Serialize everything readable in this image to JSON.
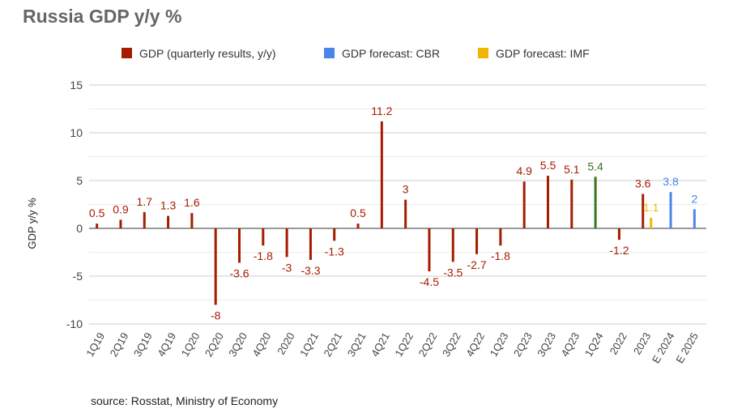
{
  "chart_data": {
    "type": "bar",
    "title": "Russia GDP y/y %",
    "y_label": "GDP y/y %",
    "source": "source: Rosstat, Ministry of Economy",
    "categories": [
      "1Q19",
      "2Q19",
      "3Q19",
      "4Q19",
      "1Q20",
      "2Q20",
      "3Q20",
      "4Q20",
      "2020",
      "1Q21",
      "2Q21",
      "3Q21",
      "4Q21",
      "1Q22",
      "2Q22",
      "3Q22",
      "4Q22",
      "1Q23",
      "2Q23",
      "3Q23",
      "4Q23",
      "1Q24",
      "2022",
      "2023",
      "E 2024",
      "E 2025"
    ],
    "series": [
      {
        "name": "GDP (quarterly results, y/y)",
        "color": "#a61c00",
        "values": [
          0.5,
          0.9,
          1.7,
          1.3,
          1.6,
          -8,
          -3.6,
          -1.8,
          -3,
          -3.3,
          -1.3,
          0.5,
          11.2,
          3,
          -4.5,
          -3.5,
          -2.7,
          -1.8,
          4.9,
          5.5,
          5.1,
          5.4,
          -1.2,
          3.6,
          null,
          null
        ],
        "highlight_points": [
          {
            "index": 21,
            "color": "#38761d"
          }
        ]
      },
      {
        "name": "GDP forecast: CBR",
        "color": "#4a86e8",
        "values": [
          null,
          null,
          null,
          null,
          null,
          null,
          null,
          null,
          null,
          null,
          null,
          null,
          null,
          null,
          null,
          null,
          null,
          null,
          null,
          null,
          null,
          null,
          null,
          null,
          3.8,
          2
        ]
      },
      {
        "name": "GDP forecast: IMF",
        "color": "#f1b700",
        "values": [
          null,
          null,
          null,
          null,
          null,
          null,
          null,
          null,
          null,
          null,
          null,
          null,
          null,
          null,
          null,
          null,
          null,
          null,
          null,
          null,
          null,
          null,
          null,
          1.1,
          null,
          null
        ]
      }
    ],
    "ylim": [
      -10,
      15
    ],
    "yticks": [
      -10,
      -5,
      0,
      5,
      10,
      15
    ],
    "grid": true,
    "minor_grid": true,
    "legend": "top"
  }
}
